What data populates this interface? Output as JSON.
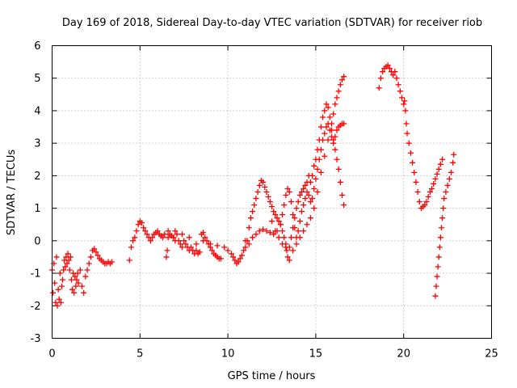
{
  "chart_data": {
    "type": "scatter",
    "title": "Day 169 of 2018, Sidereal Day-to-day VTEC variation (SDTVAR) for receiver riob",
    "xlabel": "GPS time / hours",
    "ylabel": "SDTVAR / TECUs",
    "xlim": [
      0,
      25
    ],
    "ylim": [
      -3,
      6
    ],
    "xticks": [
      0,
      5,
      10,
      15,
      20,
      25
    ],
    "yticks": [
      -3,
      -2,
      -1,
      0,
      1,
      2,
      3,
      4,
      5,
      6
    ],
    "grid": true,
    "marker": "+",
    "color": "#ff0000",
    "series": [
      {
        "name": "riob",
        "points": [
          [
            0.0,
            -0.9
          ],
          [
            0.05,
            -1.6
          ],
          [
            0.1,
            -0.7
          ],
          [
            0.15,
            -1.3
          ],
          [
            0.2,
            -1.9
          ],
          [
            0.25,
            -0.5
          ],
          [
            0.3,
            -2.0
          ],
          [
            0.35,
            -1.5
          ],
          [
            0.4,
            -1.8
          ],
          [
            0.45,
            -1.0
          ],
          [
            0.5,
            -1.9
          ],
          [
            0.55,
            -1.4
          ],
          [
            0.6,
            -1.2
          ],
          [
            0.65,
            -0.9
          ],
          [
            0.7,
            -0.6
          ],
          [
            0.75,
            -0.8
          ],
          [
            0.8,
            -0.5
          ],
          [
            0.85,
            -0.7
          ],
          [
            0.9,
            -0.4
          ],
          [
            0.95,
            -0.6
          ],
          [
            1.0,
            -0.9
          ],
          [
            1.05,
            -0.5
          ],
          [
            1.1,
            -1.2
          ],
          [
            1.15,
            -1.5
          ],
          [
            1.2,
            -1.0
          ],
          [
            1.25,
            -1.6
          ],
          [
            1.3,
            -1.1
          ],
          [
            1.35,
            -1.4
          ],
          [
            1.4,
            -1.2
          ],
          [
            1.45,
            -1.0
          ],
          [
            1.5,
            -1.3
          ],
          [
            1.6,
            -0.9
          ],
          [
            1.7,
            -1.4
          ],
          [
            1.8,
            -1.6
          ],
          [
            1.9,
            -1.1
          ],
          [
            2.0,
            -0.9
          ],
          [
            2.1,
            -0.7
          ],
          [
            2.2,
            -0.5
          ],
          [
            2.3,
            -0.3
          ],
          [
            2.4,
            -0.25
          ],
          [
            2.5,
            -0.35
          ],
          [
            2.6,
            -0.45
          ],
          [
            2.7,
            -0.55
          ],
          [
            2.8,
            -0.6
          ],
          [
            2.9,
            -0.65
          ],
          [
            3.0,
            -0.7
          ],
          [
            3.1,
            -0.7
          ],
          [
            3.2,
            -0.65
          ],
          [
            3.3,
            -0.7
          ],
          [
            3.4,
            -0.65
          ],
          [
            4.4,
            -0.6
          ],
          [
            4.5,
            -0.2
          ],
          [
            4.6,
            0.0
          ],
          [
            4.7,
            0.1
          ],
          [
            4.8,
            0.3
          ],
          [
            4.9,
            0.5
          ],
          [
            5.0,
            0.6
          ],
          [
            5.1,
            0.55
          ],
          [
            5.2,
            0.4
          ],
          [
            5.3,
            0.3
          ],
          [
            5.4,
            0.2
          ],
          [
            5.5,
            0.1
          ],
          [
            5.6,
            0.0
          ],
          [
            5.7,
            0.1
          ],
          [
            5.8,
            0.2
          ],
          [
            5.9,
            0.25
          ],
          [
            6.0,
            0.3
          ],
          [
            6.1,
            0.2
          ],
          [
            6.2,
            0.15
          ],
          [
            6.3,
            0.1
          ],
          [
            6.4,
            0.2
          ],
          [
            6.5,
            -0.5
          ],
          [
            6.55,
            -0.3
          ],
          [
            6.6,
            0.1
          ],
          [
            6.7,
            0.2
          ],
          [
            6.8,
            0.15
          ],
          [
            6.9,
            0.1
          ],
          [
            7.0,
            0.3
          ],
          [
            7.1,
            0.2
          ],
          [
            7.2,
            0.0
          ],
          [
            7.3,
            -0.1
          ],
          [
            7.4,
            -0.2
          ],
          [
            7.5,
            0.0
          ],
          [
            7.6,
            -0.1
          ],
          [
            7.7,
            -0.2
          ],
          [
            7.8,
            -0.3
          ],
          [
            7.9,
            -0.2
          ],
          [
            8.0,
            -0.3
          ],
          [
            8.1,
            -0.4
          ],
          [
            8.2,
            -0.3
          ],
          [
            8.3,
            -0.4
          ],
          [
            8.4,
            -0.35
          ],
          [
            8.5,
            0.2
          ],
          [
            8.6,
            0.25
          ],
          [
            8.7,
            0.1
          ],
          [
            8.8,
            0.0
          ],
          [
            8.9,
            -0.1
          ],
          [
            9.0,
            -0.2
          ],
          [
            9.1,
            -0.3
          ],
          [
            9.2,
            -0.4
          ],
          [
            9.3,
            -0.45
          ],
          [
            9.4,
            -0.5
          ],
          [
            9.5,
            -0.55
          ],
          [
            9.6,
            -0.55
          ],
          [
            6.6,
            0.3
          ],
          [
            7.0,
            0.0
          ],
          [
            7.4,
            0.2
          ],
          [
            7.8,
            0.1
          ],
          [
            8.2,
            -0.1
          ],
          [
            8.6,
            0.0
          ],
          [
            9.0,
            -0.1
          ],
          [
            9.4,
            -0.15
          ],
          [
            9.8,
            -0.2
          ],
          [
            10.0,
            -0.3
          ],
          [
            10.2,
            -0.4
          ],
          [
            10.3,
            -0.5
          ],
          [
            10.4,
            -0.6
          ],
          [
            10.5,
            -0.7
          ],
          [
            10.6,
            -0.65
          ],
          [
            10.7,
            -0.55
          ],
          [
            10.8,
            -0.45
          ],
          [
            10.9,
            -0.3
          ],
          [
            11.0,
            -0.2
          ],
          [
            11.1,
            0.0
          ],
          [
            11.2,
            0.4
          ],
          [
            11.3,
            0.7
          ],
          [
            11.4,
            0.9
          ],
          [
            11.5,
            1.1
          ],
          [
            11.6,
            1.3
          ],
          [
            11.7,
            1.5
          ],
          [
            11.8,
            1.7
          ],
          [
            11.9,
            1.85
          ],
          [
            12.0,
            1.8
          ],
          [
            12.1,
            1.65
          ],
          [
            12.2,
            1.5
          ],
          [
            12.3,
            1.35
          ],
          [
            12.4,
            1.2
          ],
          [
            12.5,
            1.05
          ],
          [
            12.6,
            0.9
          ],
          [
            12.7,
            0.8
          ],
          [
            12.8,
            0.7
          ],
          [
            12.9,
            0.6
          ],
          [
            13.0,
            0.5
          ],
          [
            13.1,
            0.3
          ],
          [
            13.2,
            0.1
          ],
          [
            13.3,
            -0.1
          ],
          [
            13.35,
            -0.3
          ],
          [
            13.4,
            -0.5
          ],
          [
            13.5,
            -0.2
          ],
          [
            13.6,
            0.1
          ],
          [
            13.7,
            0.4
          ],
          [
            13.8,
            0.7
          ],
          [
            13.9,
            1.0
          ],
          [
            14.0,
            1.2
          ],
          [
            14.1,
            1.4
          ],
          [
            14.2,
            1.5
          ],
          [
            14.3,
            1.6
          ],
          [
            14.4,
            1.7
          ],
          [
            14.5,
            1.8
          ],
          [
            14.6,
            2.0
          ],
          [
            14.7,
            1.8
          ],
          [
            14.8,
            2.0
          ],
          [
            14.9,
            2.3
          ],
          [
            15.0,
            2.5
          ],
          [
            15.1,
            2.8
          ],
          [
            15.2,
            3.1
          ],
          [
            15.3,
            3.5
          ],
          [
            15.4,
            3.8
          ],
          [
            15.5,
            4.0
          ],
          [
            15.6,
            4.2
          ],
          [
            15.7,
            4.1
          ],
          [
            15.8,
            3.8
          ],
          [
            15.9,
            3.4
          ],
          [
            16.0,
            3.1
          ],
          [
            16.1,
            2.8
          ],
          [
            16.2,
            2.5
          ],
          [
            16.3,
            2.2
          ],
          [
            16.4,
            1.8
          ],
          [
            16.5,
            1.4
          ],
          [
            16.6,
            1.1
          ],
          [
            11.0,
            0.0
          ],
          [
            11.2,
            -0.1
          ],
          [
            11.4,
            0.1
          ],
          [
            11.6,
            0.2
          ],
          [
            11.8,
            0.3
          ],
          [
            12.0,
            0.35
          ],
          [
            12.2,
            0.3
          ],
          [
            12.4,
            0.25
          ],
          [
            12.6,
            0.2
          ],
          [
            12.8,
            0.3
          ],
          [
            13.0,
            0.5
          ],
          [
            13.1,
            0.8
          ],
          [
            13.2,
            1.1
          ],
          [
            13.3,
            1.4
          ],
          [
            13.4,
            1.6
          ],
          [
            13.5,
            1.5
          ],
          [
            13.6,
            1.2
          ],
          [
            13.7,
            0.8
          ],
          [
            13.8,
            0.4
          ],
          [
            13.9,
            0.1
          ],
          [
            14.0,
            0.3
          ],
          [
            14.1,
            0.6
          ],
          [
            14.2,
            0.9
          ],
          [
            14.3,
            1.1
          ],
          [
            14.4,
            1.3
          ],
          [
            14.5,
            1.5
          ],
          [
            14.6,
            1.4
          ],
          [
            14.7,
            1.2
          ],
          [
            14.8,
            1.3
          ],
          [
            14.9,
            1.6
          ],
          [
            15.0,
            1.9
          ],
          [
            15.1,
            2.2
          ],
          [
            15.2,
            2.5
          ],
          [
            15.3,
            2.8
          ],
          [
            15.4,
            3.1
          ],
          [
            15.5,
            3.3
          ],
          [
            15.6,
            3.5
          ],
          [
            15.7,
            3.6
          ],
          [
            15.8,
            3.4
          ],
          [
            15.9,
            3.2
          ],
          [
            16.0,
            3.0
          ],
          [
            16.1,
            3.2
          ],
          [
            16.2,
            3.4
          ],
          [
            16.3,
            3.5
          ],
          [
            16.4,
            3.55
          ],
          [
            16.5,
            3.6
          ],
          [
            16.6,
            3.6
          ],
          [
            12.5,
            0.6
          ],
          [
            12.7,
            0.3
          ],
          [
            12.9,
            0.1
          ],
          [
            13.1,
            -0.1
          ],
          [
            13.3,
            -0.2
          ],
          [
            13.5,
            -0.6
          ],
          [
            13.7,
            -0.3
          ],
          [
            13.9,
            -0.1
          ],
          [
            14.1,
            0.1
          ],
          [
            14.3,
            0.3
          ],
          [
            14.5,
            0.5
          ],
          [
            14.7,
            0.7
          ],
          [
            14.9,
            1.0
          ],
          [
            15.1,
            1.5
          ],
          [
            15.3,
            2.1
          ],
          [
            15.5,
            2.6
          ],
          [
            15.7,
            3.1
          ],
          [
            15.9,
            3.6
          ],
          [
            16.0,
            3.9
          ],
          [
            16.1,
            4.2
          ],
          [
            16.2,
            4.4
          ],
          [
            16.3,
            4.6
          ],
          [
            16.4,
            4.8
          ],
          [
            16.5,
            4.95
          ],
          [
            16.6,
            5.05
          ],
          [
            18.6,
            4.7
          ],
          [
            18.7,
            5.0
          ],
          [
            18.8,
            5.2
          ],
          [
            18.9,
            5.3
          ],
          [
            19.0,
            5.35
          ],
          [
            19.1,
            5.4
          ],
          [
            19.2,
            5.3
          ],
          [
            19.3,
            5.2
          ],
          [
            19.4,
            5.1
          ],
          [
            19.5,
            5.2
          ],
          [
            19.6,
            5.0
          ],
          [
            19.7,
            4.8
          ],
          [
            19.8,
            4.6
          ],
          [
            19.9,
            4.4
          ],
          [
            20.0,
            4.2
          ],
          [
            20.05,
            4.3
          ],
          [
            20.1,
            4.0
          ],
          [
            20.15,
            3.6
          ],
          [
            20.2,
            3.3
          ],
          [
            20.3,
            3.0
          ],
          [
            20.4,
            2.7
          ],
          [
            20.5,
            2.4
          ],
          [
            20.6,
            2.1
          ],
          [
            20.7,
            1.8
          ],
          [
            20.8,
            1.5
          ],
          [
            20.9,
            1.2
          ],
          [
            21.0,
            1.0
          ],
          [
            21.1,
            1.05
          ],
          [
            21.2,
            1.1
          ],
          [
            21.3,
            1.2
          ],
          [
            21.4,
            1.35
          ],
          [
            21.5,
            1.5
          ],
          [
            21.6,
            1.6
          ],
          [
            21.7,
            1.75
          ],
          [
            21.8,
            1.9
          ],
          [
            21.9,
            2.05
          ],
          [
            22.0,
            2.2
          ],
          [
            22.1,
            2.35
          ],
          [
            22.2,
            2.5
          ],
          [
            21.8,
            -1.7
          ],
          [
            21.85,
            -1.4
          ],
          [
            21.9,
            -1.1
          ],
          [
            21.95,
            -0.8
          ],
          [
            22.0,
            -0.5
          ],
          [
            22.05,
            -0.2
          ],
          [
            22.1,
            0.1
          ],
          [
            22.15,
            0.4
          ],
          [
            22.2,
            0.7
          ],
          [
            22.25,
            1.0
          ],
          [
            22.3,
            1.3
          ],
          [
            22.4,
            1.5
          ],
          [
            22.5,
            1.7
          ],
          [
            22.6,
            1.9
          ],
          [
            22.7,
            2.1
          ],
          [
            22.8,
            2.4
          ],
          [
            22.85,
            2.65
          ]
        ]
      }
    ]
  }
}
